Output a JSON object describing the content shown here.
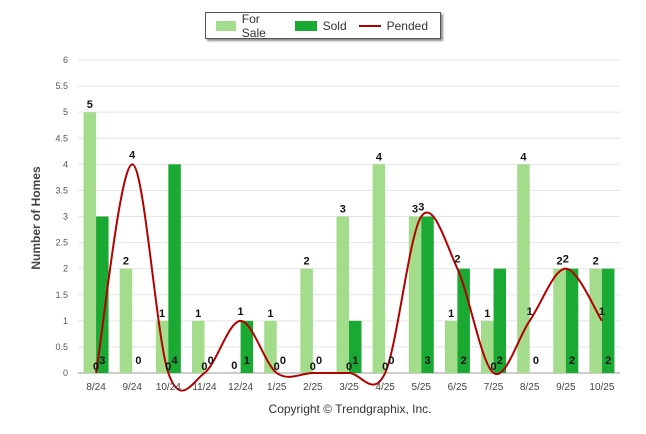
{
  "legend": {
    "for_sale": "For Sale",
    "sold": "Sold",
    "pended": "Pended"
  },
  "ylabel": "Number of Homes",
  "copyright": "Copyright © Trendgraphix, Inc.",
  "colors": {
    "for_sale": "#a3dc8b",
    "sold": "#1aa932",
    "pended": "#b30000",
    "grid": "#e4e4e4"
  },
  "chart_data": {
    "type": "bar",
    "categories": [
      "8/24",
      "9/24",
      "10/24",
      "11/24",
      "12/24",
      "1/25",
      "2/25",
      "3/25",
      "4/25",
      "5/25",
      "6/25",
      "7/25",
      "8/25",
      "9/25",
      "10/25"
    ],
    "ylim": [
      0,
      6
    ],
    "yticks": [
      "0",
      "0.5",
      "1",
      "1.5",
      "2",
      "2.5",
      "3",
      "3.5",
      "4",
      "4.5",
      "5",
      "5.5",
      "6"
    ],
    "grid": true,
    "legend_position": "top-center",
    "series": [
      {
        "name": "For Sale",
        "type": "bar",
        "values": [
          5,
          2,
          1,
          1,
          0,
          1,
          2,
          3,
          4,
          3,
          1,
          1,
          4,
          2,
          2
        ]
      },
      {
        "name": "Sold",
        "type": "bar",
        "values": [
          3,
          0,
          4,
          0,
          1,
          0,
          0,
          1,
          0,
          3,
          2,
          2,
          0,
          2,
          2
        ]
      },
      {
        "name": "Pended",
        "type": "line",
        "values": [
          0,
          4,
          0,
          0,
          1,
          0,
          0,
          0,
          0,
          3,
          2,
          0,
          1,
          2,
          1
        ]
      }
    ]
  }
}
